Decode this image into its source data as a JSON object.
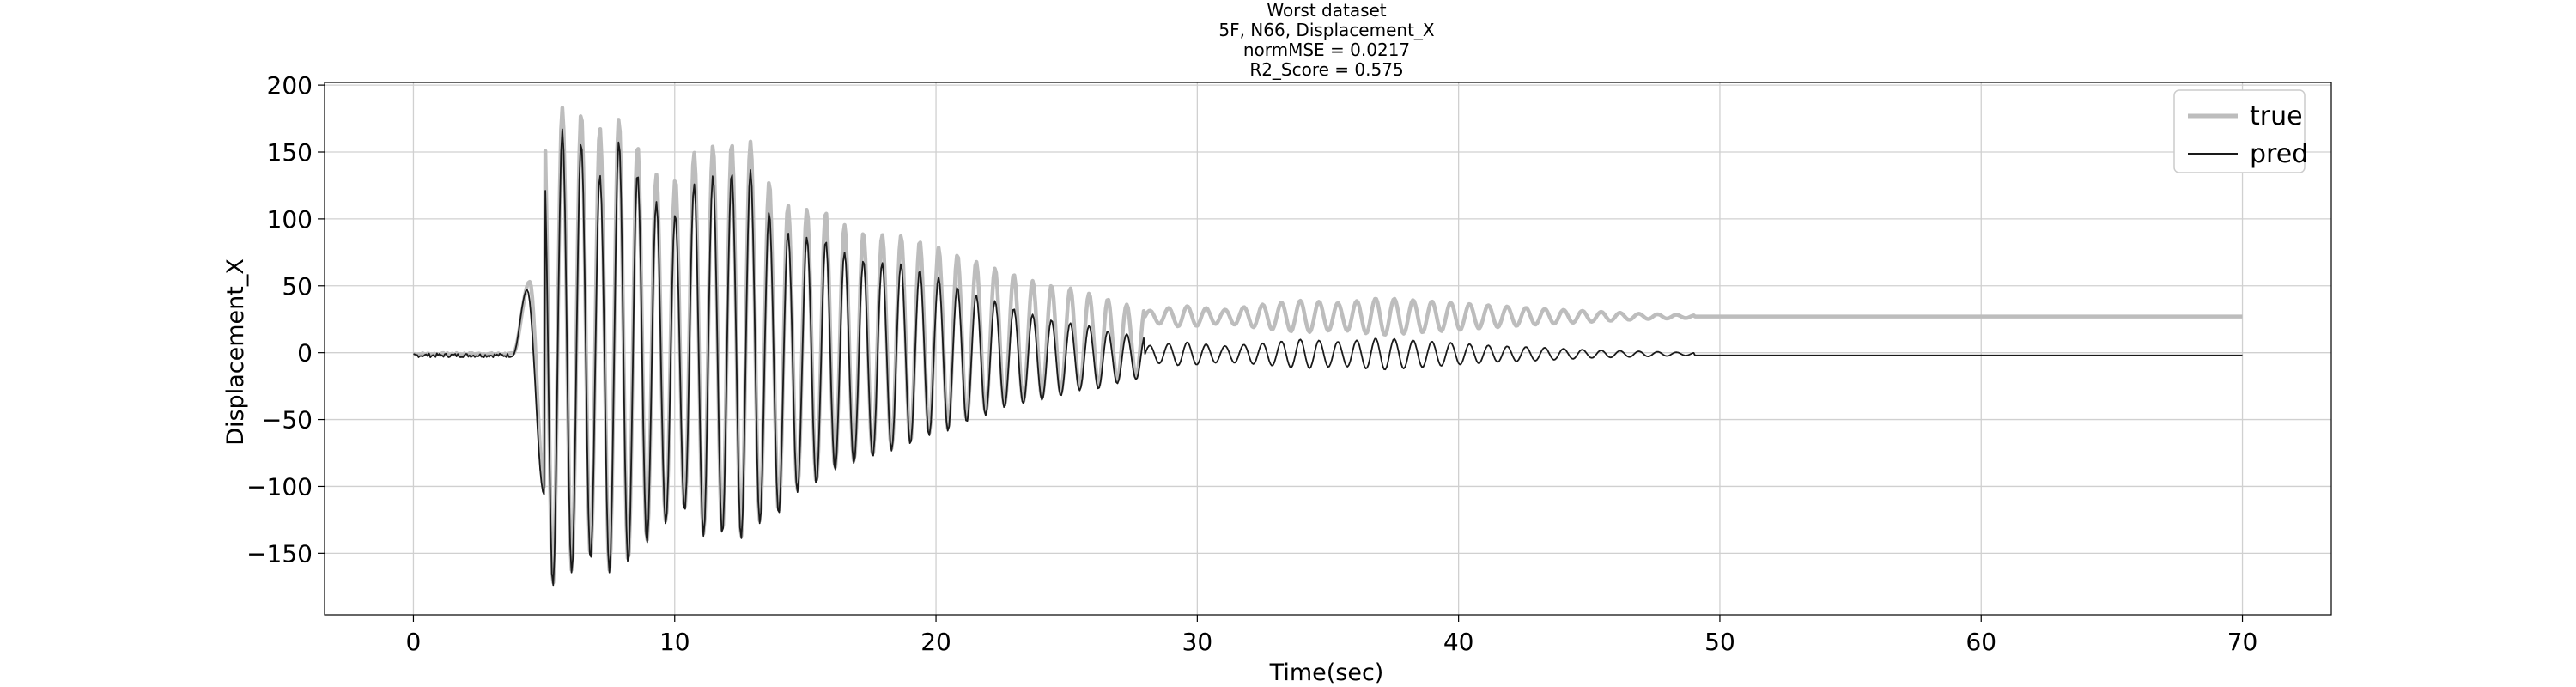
{
  "chart_data": {
    "type": "line",
    "title_lines": [
      "Worst dataset",
      "5F, N66, Displacement_X",
      "normMSE = 0.0217",
      "R2_Score = 0.575"
    ],
    "xlabel": "Time(sec)",
    "ylabel": "Displacement_X",
    "xlim": [
      -3.4,
      73.4
    ],
    "ylim": [
      -196,
      202
    ],
    "xticks": [
      0,
      10,
      20,
      30,
      40,
      50,
      60,
      70
    ],
    "yticks": [
      -150,
      -100,
      -50,
      0,
      50,
      100,
      150,
      200
    ],
    "xtick_labels": [
      "0",
      "10",
      "20",
      "30",
      "40",
      "50",
      "60",
      "70"
    ],
    "ytick_labels": [
      "−150",
      "−100",
      "−50",
      "0",
      "50",
      "100",
      "150",
      "200"
    ],
    "grid": true,
    "legend_position": "top-right",
    "x_range": [
      0,
      70
    ],
    "dt": 0.05,
    "series": [
      {
        "name": "true",
        "color": "#bdbdbd",
        "style": "thick",
        "segments": [
          {
            "t0": 0,
            "t1": 3.8,
            "kind": "noise",
            "offset": -1,
            "amp": 1.5
          },
          {
            "t0": 3.8,
            "t1": 4.45,
            "kind": "ramp",
            "from": -1,
            "to": 53
          },
          {
            "t0": 4.45,
            "t1": 5.0,
            "kind": "ramp",
            "from": 53,
            "to": -100
          },
          {
            "t0": 5.0,
            "t1": 28.0,
            "kind": "peaks",
            "period": 0.72,
            "phase_t": 5.7,
            "troughs_follow_pred": true,
            "peaks": [
              [
                5.7,
                183
              ],
              [
                6.45,
                179
              ],
              [
                7.2,
                167
              ],
              [
                7.95,
                176
              ],
              [
                8.65,
                153
              ],
              [
                9.4,
                130
              ],
              [
                10.1,
                130
              ],
              [
                10.85,
                153
              ],
              [
                11.6,
                155
              ],
              [
                12.3,
                157
              ],
              [
                13.05,
                158
              ],
              [
                13.8,
                118
              ],
              [
                14.5,
                108
              ],
              [
                15.2,
                107
              ],
              [
                15.95,
                105
              ],
              [
                16.7,
                92
              ],
              [
                17.4,
                89
              ],
              [
                18.15,
                88
              ],
              [
                18.9,
                87
              ],
              [
                19.6,
                82
              ],
              [
                20.3,
                77
              ],
              [
                21.0,
                72
              ],
              [
                21.7,
                67
              ],
              [
                22.4,
                62
              ],
              [
                23.1,
                58
              ],
              [
                23.8,
                53
              ],
              [
                24.5,
                50
              ],
              [
                25.2,
                48
              ],
              [
                25.9,
                44
              ],
              [
                26.6,
                40
              ],
              [
                27.3,
                36
              ]
            ]
          },
          {
            "t0": 28.0,
            "t1": 49.0,
            "kind": "beat",
            "offset": 27,
            "period": 0.72,
            "env": [
              [
                28,
                4
              ],
              [
                29.5,
                8
              ],
              [
                31,
                5
              ],
              [
                32.5,
                9
              ],
              [
                34,
                12
              ],
              [
                35.5,
                10
              ],
              [
                37,
                14
              ],
              [
                38.5,
                12
              ],
              [
                40,
                10
              ],
              [
                41.5,
                8
              ],
              [
                43,
                6
              ],
              [
                45,
                4
              ],
              [
                47,
                2
              ],
              [
                49,
                1
              ]
            ]
          },
          {
            "t0": 49.0,
            "t1": 70.0,
            "kind": "flat",
            "offset": 27
          }
        ]
      },
      {
        "name": "pred",
        "color": "#1a1a1a",
        "style": "thin",
        "segments": [
          {
            "t0": 0,
            "t1": 3.8,
            "kind": "noise",
            "offset": -2,
            "amp": 3
          },
          {
            "t0": 3.8,
            "t1": 4.35,
            "kind": "ramp",
            "from": -2,
            "to": 47
          },
          {
            "t0": 4.35,
            "t1": 5.0,
            "kind": "ramp",
            "from": 47,
            "to": -106
          },
          {
            "t0": 5.0,
            "t1": 28.0,
            "kind": "peaks",
            "period": 0.72,
            "phase_t": 5.7,
            "peaks": [
              [
                4.95,
                148
              ],
              [
                5.7,
                167
              ],
              [
                6.45,
                157
              ],
              [
                7.2,
                131
              ],
              [
                7.95,
                162
              ],
              [
                8.65,
                131
              ],
              [
                9.4,
                110
              ],
              [
                10.1,
                103
              ],
              [
                10.85,
                130
              ],
              [
                11.6,
                133
              ],
              [
                12.3,
                135
              ],
              [
                13.05,
                137
              ],
              [
                13.8,
                95
              ],
              [
                14.5,
                88
              ],
              [
                15.2,
                86
              ],
              [
                15.95,
                83
              ],
              [
                16.7,
                72
              ],
              [
                17.4,
                68
              ],
              [
                18.15,
                67
              ],
              [
                18.9,
                66
              ],
              [
                19.6,
                60
              ],
              [
                20.3,
                55
              ],
              [
                21.0,
                47
              ],
              [
                21.7,
                42
              ],
              [
                22.4,
                38
              ],
              [
                23.1,
                32
              ],
              [
                23.8,
                28
              ],
              [
                24.5,
                24
              ],
              [
                25.2,
                22
              ],
              [
                25.9,
                20
              ],
              [
                26.6,
                16
              ],
              [
                27.3,
                14
              ]
            ],
            "troughs": [
              [
                5.3,
                -175
              ],
              [
                6.05,
                -165
              ],
              [
                6.8,
                -155
              ],
              [
                7.55,
                -165
              ],
              [
                8.3,
                -157
              ],
              [
                9.05,
                -140
              ],
              [
                9.75,
                -126
              ],
              [
                10.45,
                -118
              ],
              [
                11.2,
                -140
              ],
              [
                11.95,
                -135
              ],
              [
                12.65,
                -140
              ],
              [
                13.4,
                -125
              ],
              [
                14.15,
                -120
              ],
              [
                14.85,
                -100
              ],
              [
                15.6,
                -98
              ],
              [
                16.3,
                -85
              ],
              [
                17.05,
                -82
              ],
              [
                17.75,
                -77
              ],
              [
                18.5,
                -72
              ],
              [
                19.25,
                -67
              ],
              [
                19.95,
                -60
              ],
              [
                20.65,
                -58
              ],
              [
                21.35,
                -50
              ],
              [
                22.05,
                -46
              ],
              [
                22.75,
                -40
              ],
              [
                23.45,
                -38
              ],
              [
                24.15,
                -35
              ],
              [
                24.85,
                -32
              ],
              [
                25.55,
                -28
              ],
              [
                26.25,
                -27
              ],
              [
                26.95,
                -23
              ],
              [
                27.65,
                -20
              ]
            ]
          },
          {
            "t0": 28.0,
            "t1": 49.0,
            "kind": "beat",
            "offset": -1,
            "period": 0.72,
            "env": [
              [
                28,
                6
              ],
              [
                29.5,
                9
              ],
              [
                31,
                6
              ],
              [
                32.5,
                8
              ],
              [
                34,
                11
              ],
              [
                35.5,
                9
              ],
              [
                37,
                12
              ],
              [
                38.5,
                10
              ],
              [
                40,
                8
              ],
              [
                41.5,
                6
              ],
              [
                43,
                5
              ],
              [
                45,
                3
              ],
              [
                47,
                2
              ],
              [
                49,
                1
              ]
            ]
          },
          {
            "t0": 49.0,
            "t1": 70.0,
            "kind": "flat",
            "offset": -2
          }
        ]
      }
    ]
  }
}
